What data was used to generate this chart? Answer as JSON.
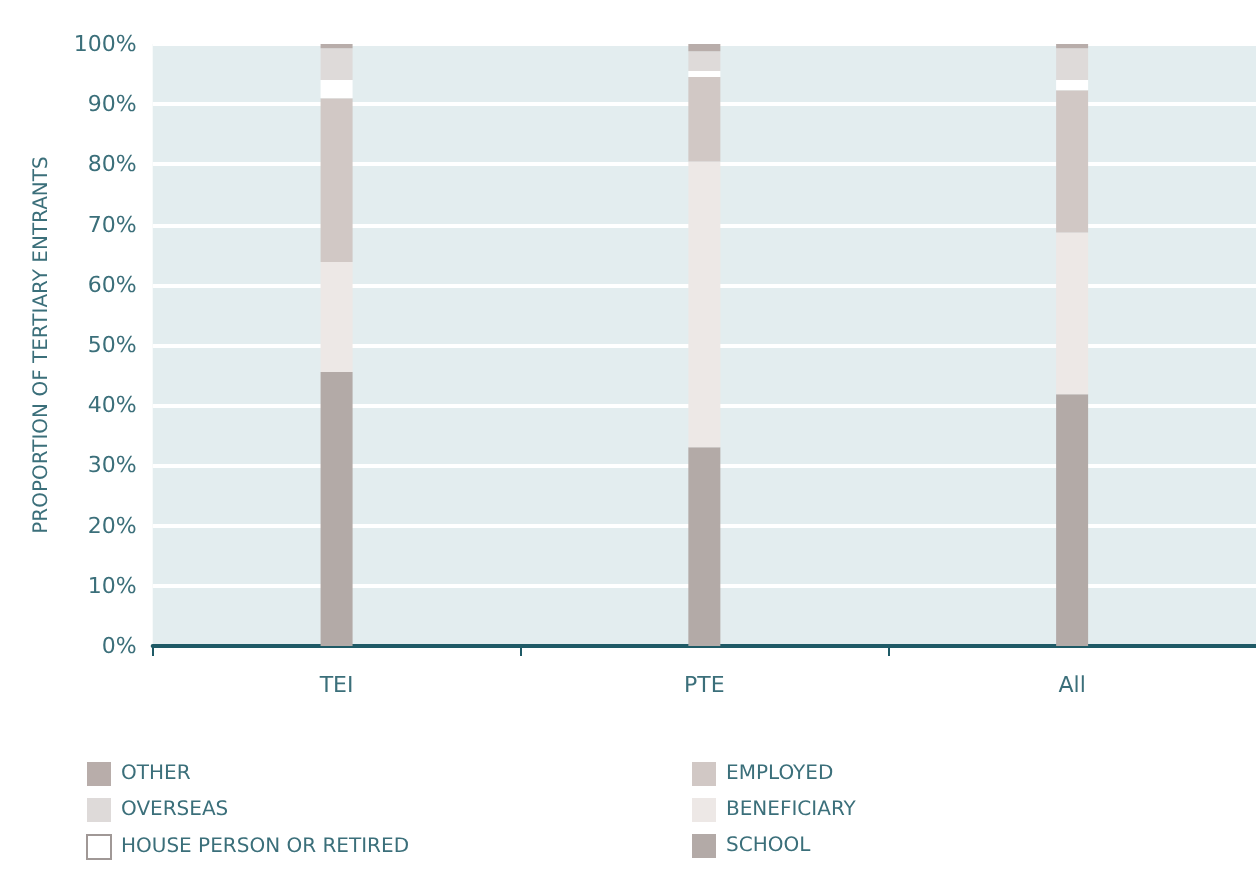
{
  "chart_data": {
    "type": "bar",
    "stacked": true,
    "ylabel": "PROPORTION OF TERTIARY ENTRANTS",
    "categories": [
      "TEI",
      "PTE",
      "All"
    ],
    "series": [
      {
        "name": "SCHOOL",
        "color": "#b3aaa7",
        "values": [
          45.5,
          33,
          41.8
        ]
      },
      {
        "name": "BENEFICIARY",
        "color": "#ede8e6",
        "values": [
          18.3,
          47.5,
          26.9
        ]
      },
      {
        "name": "EMPLOYED",
        "color": "#d1c8c5",
        "values": [
          27.2,
          14,
          23.6
        ]
      },
      {
        "name": "HOUSE PERSON OR RETIRED",
        "color": "#ffffff",
        "values": [
          3,
          1,
          1.7
        ]
      },
      {
        "name": "OVERSEAS",
        "color": "#dedad9",
        "values": [
          5.3,
          3.3,
          5.3
        ]
      },
      {
        "name": "OTHER",
        "color": "#b8adaa",
        "values": [
          0.7,
          1.2,
          0.7
        ]
      }
    ],
    "ylim": [
      0,
      100
    ],
    "yticks": [
      {
        "value": 0,
        "label": "0%"
      },
      {
        "value": 10,
        "label": "10%"
      },
      {
        "value": 20,
        "label": "20%"
      },
      {
        "value": 30,
        "label": "30%"
      },
      {
        "value": 40,
        "label": "40%"
      },
      {
        "value": 50,
        "label": "50%"
      },
      {
        "value": 60,
        "label": "60%"
      },
      {
        "value": 70,
        "label": "70%"
      },
      {
        "value": 80,
        "label": "80%"
      },
      {
        "value": 90,
        "label": "90%"
      },
      {
        "value": 100,
        "label": "100%"
      }
    ],
    "grid": "y",
    "legend": "bottom"
  }
}
